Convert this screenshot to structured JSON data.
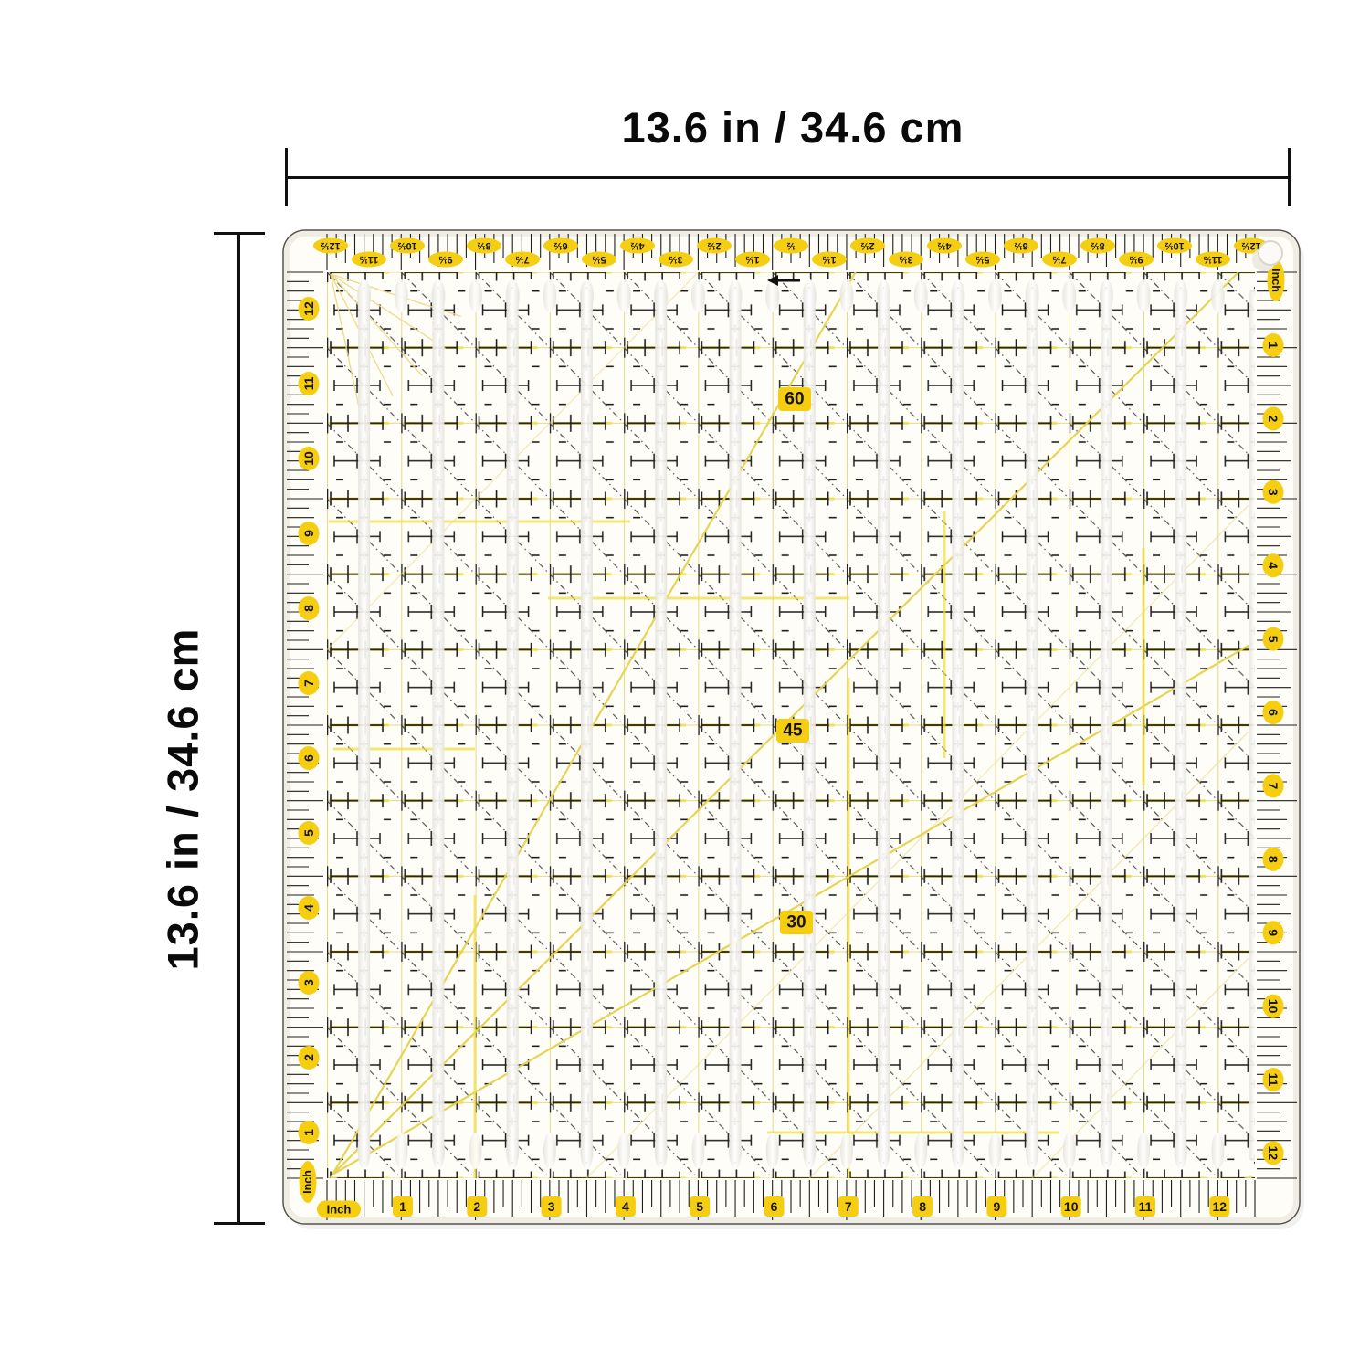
{
  "annotations": {
    "width_label": "13.6 in / 34.6 cm",
    "height_label": "13.6 in / 34.6 cm"
  },
  "ruler": {
    "inch_label": "Inch",
    "top_labels": [
      "12½",
      "11½",
      "10½",
      "9½",
      "8½",
      "7½",
      "6½",
      "5½",
      "4½",
      "3½",
      "2½",
      "1½",
      "½",
      "1½",
      "2½",
      "3½",
      "4½",
      "5½",
      "6½",
      "7½",
      "8½",
      "9½",
      "10½",
      "11½",
      "12½"
    ],
    "left_labels": [
      "12",
      "11",
      "10",
      "9",
      "8",
      "7",
      "6",
      "5",
      "4",
      "3",
      "2",
      "1"
    ],
    "right_labels": [
      "1",
      "2",
      "3",
      "4",
      "5",
      "6",
      "7",
      "8",
      "9",
      "10",
      "11",
      "12"
    ],
    "bottom_labels": [
      "1",
      "2",
      "3",
      "4",
      "5",
      "6",
      "7",
      "8",
      "9",
      "10",
      "11",
      "12"
    ],
    "angle_labels": [
      "60",
      "45",
      "30"
    ],
    "colors": {
      "badge": "#f5ce11",
      "grid_yellow": "#e5d985",
      "bright_yellow": "#f0dd3f",
      "pale_yellow": "#ecd98a",
      "ink": "#1e1e1e"
    }
  }
}
